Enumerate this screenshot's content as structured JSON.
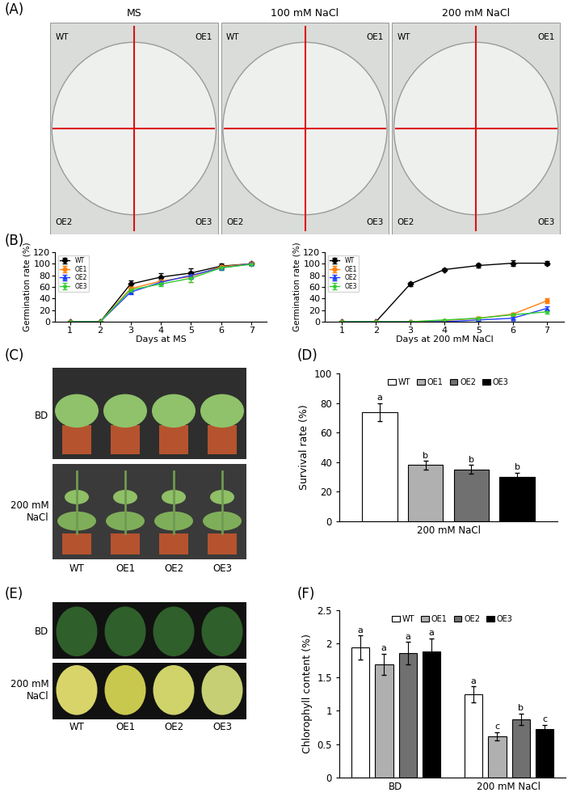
{
  "panel_labels": [
    "(A)",
    "(B)",
    "(C)",
    "(D)",
    "(E)",
    "(F)"
  ],
  "photos": {
    "A": {
      "plates": [
        {
          "title": "MS",
          "quadrants": [
            "WT",
            "OE1",
            "OE2",
            "OE3"
          ]
        },
        {
          "title": "100 mM NaCl",
          "quadrants": [
            "WT",
            "OE1",
            "OE2",
            "OE3"
          ]
        },
        {
          "title": "200 mM NaCl",
          "quadrants": [
            "WT",
            "OE1",
            "OE2",
            "OE3"
          ]
        }
      ]
    },
    "C": {
      "rows": [
        "BD",
        "200 mM\nNaCl"
      ],
      "columns": [
        "WT",
        "OE1",
        "OE2",
        "OE3"
      ]
    },
    "E": {
      "rows": [
        "BD",
        "200 mM\nNaCl"
      ],
      "columns": [
        "WT",
        "OE1",
        "OE2",
        "OE3"
      ]
    }
  },
  "chart_data": [
    {
      "type": "line",
      "x": [
        1,
        2,
        3,
        4,
        5,
        6,
        7
      ],
      "xlabel": "Days at MS",
      "ylabel": "Germination rate (%)",
      "xlim": [
        0.5,
        7.5
      ],
      "xticks": [
        1,
        2,
        3,
        4,
        5,
        6,
        7
      ],
      "ylim": [
        0,
        120
      ],
      "yticks": [
        0,
        20,
        40,
        60,
        80,
        100,
        120
      ],
      "legend": "upper left",
      "grid": false,
      "series": [
        {
          "name": "WT",
          "color": "#000000",
          "marker": "diamond",
          "line_style": "solid",
          "values": [
            0,
            0,
            65,
            77,
            84,
            96,
            100
          ],
          "errors": [
            0,
            0,
            6,
            7,
            8,
            4,
            3
          ]
        },
        {
          "name": "OE1",
          "color": "#ff7f0e",
          "marker": "circle",
          "line_style": "solid",
          "values": [
            0,
            0,
            57,
            70,
            78,
            95,
            100
          ],
          "errors": [
            0,
            0,
            4,
            5,
            9,
            4,
            2
          ]
        },
        {
          "name": "OE2",
          "color": "#1f3fff",
          "marker": "triangle",
          "line_style": "solid",
          "values": [
            0,
            0,
            51,
            68,
            80,
            93,
            100
          ],
          "errors": [
            0,
            0,
            4,
            4,
            6,
            4,
            2
          ]
        },
        {
          "name": "OE3",
          "color": "#33cc33",
          "marker": "star",
          "line_style": "solid",
          "values": [
            0,
            0,
            55,
            65,
            75,
            93,
            99
          ],
          "errors": [
            0,
            0,
            3,
            3,
            7,
            4,
            2
          ]
        }
      ]
    },
    {
      "type": "line",
      "x": [
        1,
        2,
        3,
        4,
        5,
        6,
        7
      ],
      "xlabel": "Days at 200 mM NaCl",
      "ylabel": "Germination rate (%)",
      "xlim": [
        0.5,
        7.5
      ],
      "xticks": [
        1,
        2,
        3,
        4,
        5,
        6,
        7
      ],
      "ylim": [
        0,
        120
      ],
      "yticks": [
        0,
        20,
        40,
        60,
        80,
        100,
        120
      ],
      "legend": "upper left",
      "grid": false,
      "series": [
        {
          "name": "WT",
          "color": "#000000",
          "marker": "diamond",
          "line_style": "solid",
          "values": [
            0,
            0,
            65,
            90,
            97,
            101,
            101
          ],
          "errors": [
            0,
            0,
            3,
            2,
            4,
            5,
            4
          ]
        },
        {
          "name": "OE1",
          "color": "#ff7f0e",
          "marker": "circle",
          "line_style": "solid",
          "values": [
            0,
            0,
            0,
            2,
            6,
            13,
            36
          ],
          "errors": [
            0,
            0,
            0,
            1,
            2,
            2,
            4
          ]
        },
        {
          "name": "OE2",
          "color": "#1f3fff",
          "marker": "triangle",
          "line_style": "solid",
          "values": [
            0,
            0,
            0,
            0,
            3,
            6,
            23
          ],
          "errors": [
            0,
            0,
            0,
            0,
            1,
            2,
            3
          ]
        },
        {
          "name": "OE3",
          "color": "#33cc33",
          "marker": "star",
          "line_style": "solid",
          "values": [
            0,
            0,
            0,
            3,
            6,
            12,
            17
          ],
          "errors": [
            0,
            0,
            0,
            1,
            2,
            2,
            3
          ]
        }
      ]
    },
    {
      "type": "bar",
      "categories": [
        "200 mM NaCl"
      ],
      "ylabel": "Survival rate (%)",
      "ylim": [
        0,
        100
      ],
      "yticks": [
        0,
        20,
        40,
        60,
        80,
        100
      ],
      "legend": "upper center",
      "grid": false,
      "series": [
        {
          "name": "WT",
          "color": "#ffffff",
          "values": [
            74
          ],
          "errors": [
            6
          ],
          "letters": [
            "a"
          ]
        },
        {
          "name": "OE1",
          "color": "#b0b0b0",
          "values": [
            38
          ],
          "errors": [
            3
          ],
          "letters": [
            "b"
          ]
        },
        {
          "name": "OE2",
          "color": "#707070",
          "values": [
            35
          ],
          "errors": [
            3
          ],
          "letters": [
            "b"
          ]
        },
        {
          "name": "OE3",
          "color": "#000000",
          "values": [
            30
          ],
          "errors": [
            3
          ],
          "letters": [
            "b"
          ]
        }
      ]
    },
    {
      "type": "bar",
      "categories": [
        "BD",
        "200 mM NaCl"
      ],
      "ylabel": "Chlorophyll content (%)",
      "ylim": [
        0,
        2.5
      ],
      "yticks": [
        0,
        0.5,
        1,
        1.5,
        2,
        2.5
      ],
      "legend": "upper center",
      "grid": false,
      "series": [
        {
          "name": "WT",
          "color": "#ffffff",
          "values": [
            1.94,
            1.24
          ],
          "errors": [
            0.18,
            0.12
          ],
          "letters": [
            "a",
            "a"
          ]
        },
        {
          "name": "OE1",
          "color": "#b0b0b0",
          "values": [
            1.69,
            0.62
          ],
          "errors": [
            0.16,
            0.06
          ],
          "letters": [
            "a",
            "c"
          ]
        },
        {
          "name": "OE2",
          "color": "#707070",
          "values": [
            1.86,
            0.87
          ],
          "errors": [
            0.17,
            0.09
          ],
          "letters": [
            "a",
            "b"
          ]
        },
        {
          "name": "OE3",
          "color": "#000000",
          "values": [
            1.89,
            0.72
          ],
          "errors": [
            0.19,
            0.07
          ],
          "letters": [
            "a",
            "c"
          ]
        }
      ]
    }
  ]
}
